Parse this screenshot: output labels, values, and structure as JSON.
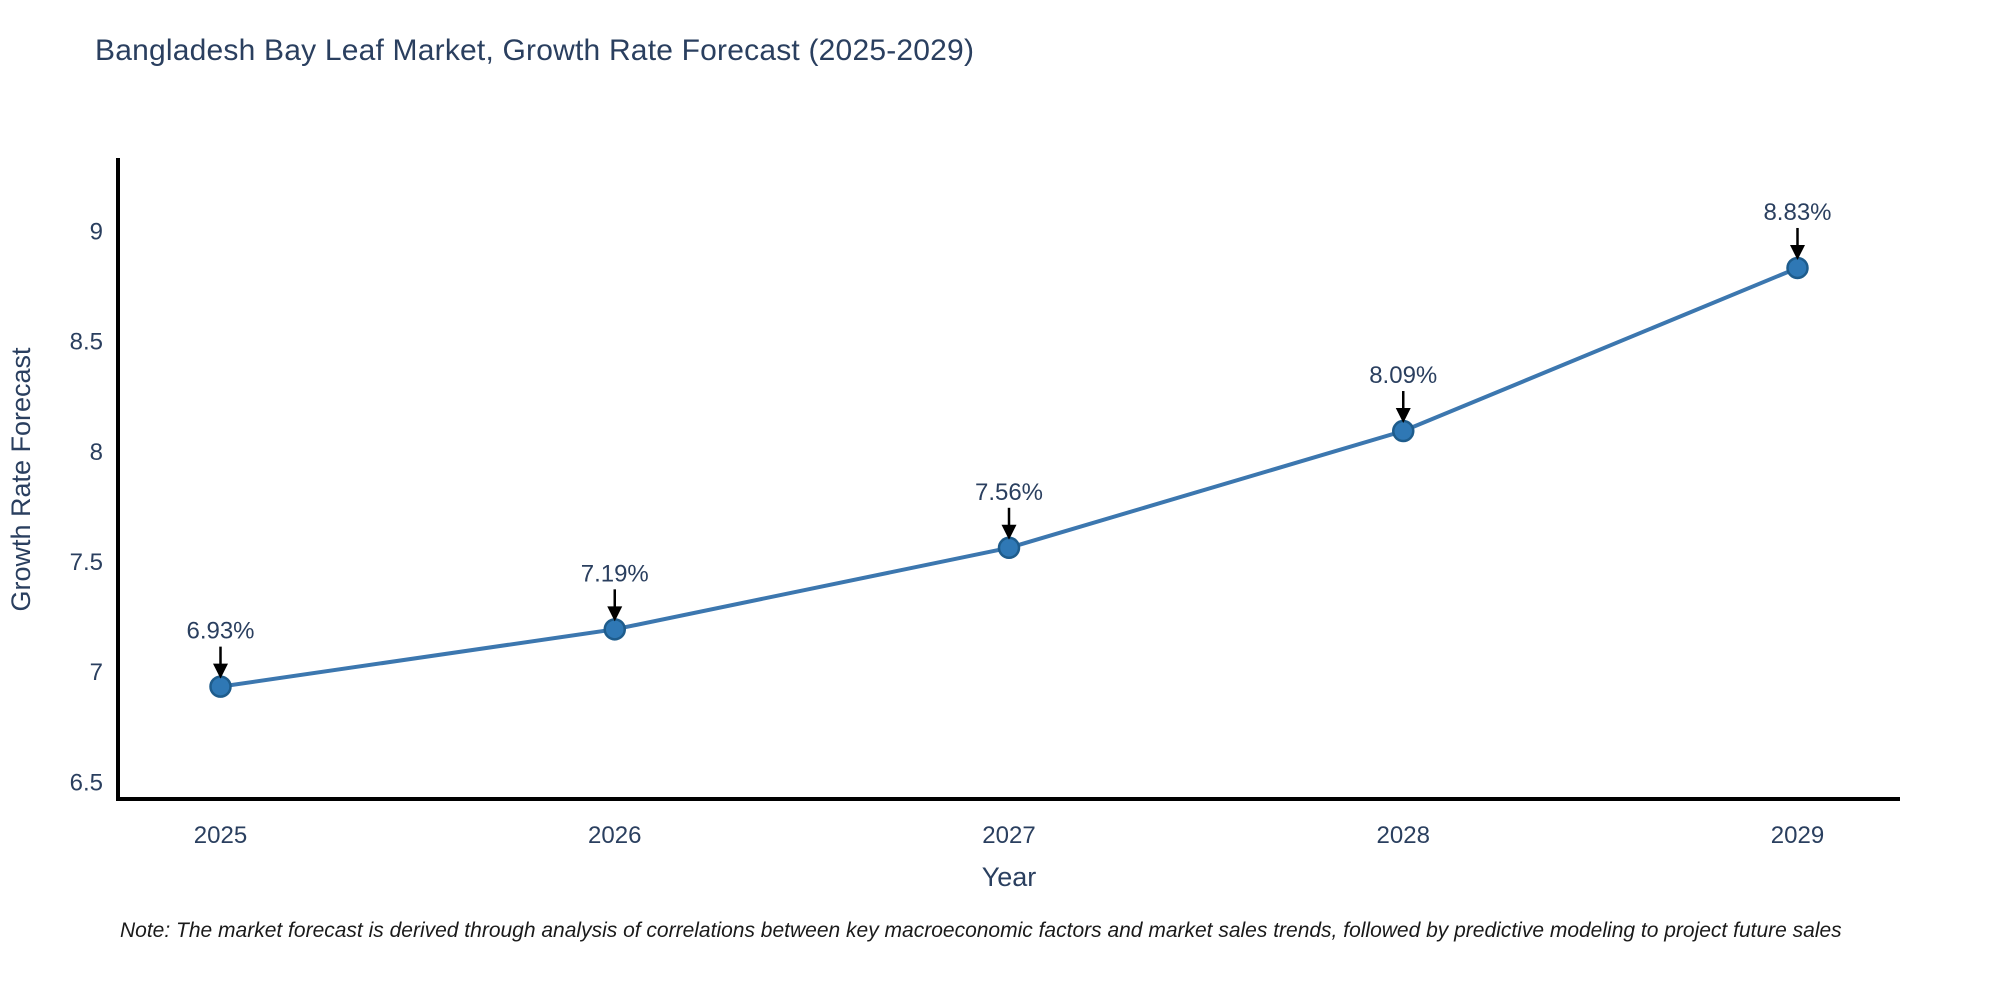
{
  "chart_data": {
    "type": "line",
    "title": "Bangladesh Bay Leaf Market, Growth Rate Forecast (2025-2029)",
    "xlabel": "Year",
    "ylabel": "Growth Rate Forecast",
    "x": [
      2025,
      2026,
      2027,
      2028,
      2029
    ],
    "x_tick_labels": [
      "2025",
      "2026",
      "2027",
      "2028",
      "2029"
    ],
    "series": [
      {
        "name": "Growth Rate Forecast",
        "values": [
          6.93,
          7.19,
          7.56,
          8.09,
          8.83
        ]
      }
    ],
    "point_labels": [
      "6.93%",
      "7.19%",
      "7.56%",
      "8.09%",
      "8.83%"
    ],
    "yticks": [
      6.5,
      7,
      7.5,
      8,
      8.5,
      9
    ],
    "ytick_labels": [
      "6.5",
      "7",
      "7.5",
      "8",
      "8.5",
      "9"
    ],
    "xlim": [
      2024.74,
      2029.26
    ],
    "ylim": [
      6.42,
      9.32
    ],
    "grid": false,
    "legend_position": "none",
    "colors": {
      "line": "#3c77af",
      "marker_fill": "#2f78b5",
      "marker_edge": "#1e5c8c",
      "annotation_arrow": "#000000",
      "axis_line": "#000000",
      "axis_text": "#2a3f5f",
      "title_text": "#2a3f5f",
      "note_text": "#1a1a1a"
    }
  },
  "note": {
    "text": "Note: The market forecast is derived through analysis of correlations between key macroeconomic factors and market sales trends, followed by predictive modeling to project future sales"
  }
}
